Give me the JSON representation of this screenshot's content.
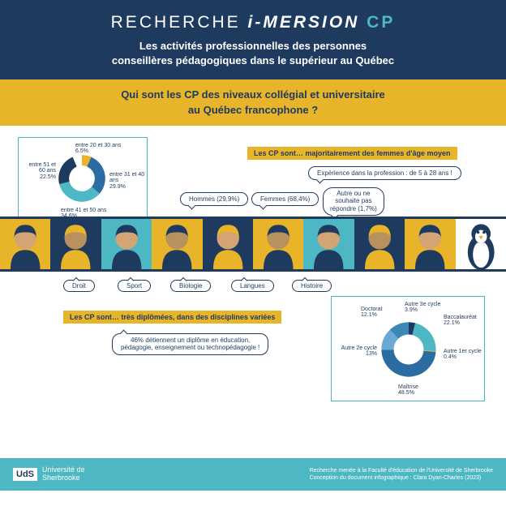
{
  "header": {
    "title_a": "RECHERCHE ",
    "title_b": "i-MERSION ",
    "title_c": "CP",
    "subtitle": "Les activités professionnelles des personnes\nconseillères pédagogiques dans le supérieur au Québec"
  },
  "question": "Qui sont les CP des niveaux collégial et universitaire\nau Québec francophone ?",
  "section1": "Les CP sont… majoritairement des femmes d'âge moyen",
  "experience": "Expérience dans la profession : de 5 à 28 ans !",
  "gender": {
    "hommes": "Hommes (29,9%)",
    "femmes": "Femmes (68,4%)",
    "autre": "Autre ou ne\nsouhaite pas\nrépondre (1,7%)"
  },
  "age_chart": {
    "type": "donut",
    "slices": [
      {
        "label": "entre 20 et 30 ans",
        "pct": 6.5,
        "color": "#e8b42a"
      },
      {
        "label": "entre 31 et 40 ans",
        "pct": 29.9,
        "color": "#2b6ca3"
      },
      {
        "label": "entre 41 et 50 ans",
        "pct": 34.6,
        "color": "#4db8c4"
      },
      {
        "label": "entre 51 et 60 ans",
        "pct": 22.5,
        "color": "#1e3a5f"
      }
    ],
    "bg": "#ffffff",
    "hole": 0.55,
    "label_fontsize": 7
  },
  "topics": [
    "Droit",
    "Sport",
    "Biologie",
    "Langues",
    "Histoire"
  ],
  "section2": "Les CP sont… très diplômées, dans des disciplines variées",
  "education_note": "46% détiennent un diplôme en éducation,\npédagogie, enseignement ou technopédagogie !",
  "degree_chart": {
    "type": "donut",
    "slices": [
      {
        "label": "Autre 3e cycle",
        "pct": 3.9,
        "color": "#1e3a5f"
      },
      {
        "label": "Baccalauréat",
        "pct": 22.1,
        "color": "#4db8c4"
      },
      {
        "label": "Autre 1er cycle",
        "pct": 0.4,
        "color": "#e8b42a"
      },
      {
        "label": "Maîtrise",
        "pct": 48.5,
        "color": "#2b6ca3"
      },
      {
        "label": "Autre 2e cycle",
        "pct": 13.0,
        "color": "#6ba8d4"
      },
      {
        "label": "Doctorat",
        "pct": 12.1,
        "color": "#3b87b8"
      }
    ],
    "bg": "#ffffff",
    "hole": 0.55,
    "label_fontsize": 7
  },
  "people_colors": {
    "bg": [
      "#e8b42a",
      "#1e3a5f",
      "#4db8c4",
      "#e8b42a",
      "#1e3a5f",
      "#e8b42a",
      "#4db8c4",
      "#1e3a5f",
      "#e8b42a",
      "#ffffff"
    ],
    "skin": "#d4a574",
    "skin2": "#b8915f",
    "hair": "#1e3a5f"
  },
  "footer": {
    "logo_abbr": "UdS",
    "logo_name": "Université de\nSherbrooke",
    "credit1": "Recherche menée à la Faculté d'éducation de l'Université de Sherbrooke",
    "credit2": "Conception du document infographique : Clara Dyan-Charles (2023)"
  }
}
